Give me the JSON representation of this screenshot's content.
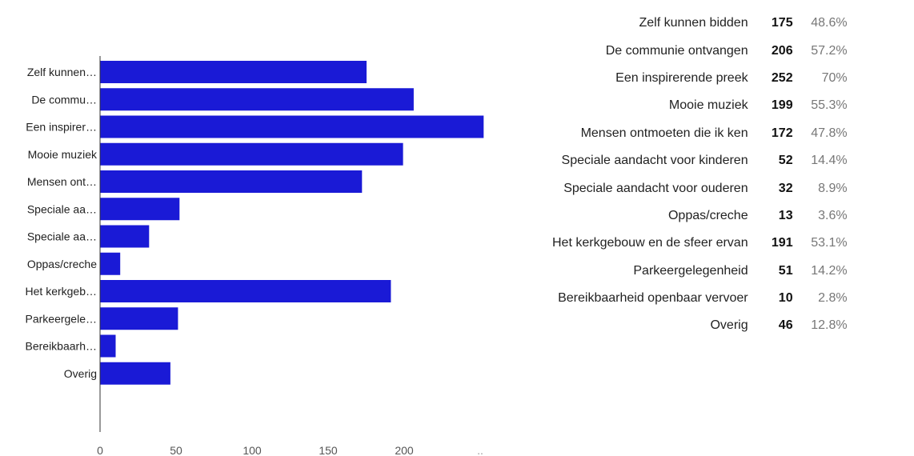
{
  "chart_data": {
    "type": "bar",
    "orientation": "horizontal",
    "categories": [
      "Zelf kunnen…",
      "De commu…",
      "Een inspirer…",
      "Mooie muziek",
      "Mensen ont…",
      "Speciale aa…",
      "Speciale aa…",
      "Oppas/creche",
      "Het kerkgeb…",
      "Parkeergele…",
      "Bereikbaarh…",
      "Overig"
    ],
    "values": [
      175,
      206,
      252,
      199,
      172,
      52,
      32,
      13,
      191,
      51,
      10,
      46
    ],
    "bar_color": "#1a1ad6",
    "xlim": [
      0,
      250
    ],
    "xticks": [
      "0",
      "50",
      "100",
      "150",
      "200",
      ".."
    ],
    "grid": false,
    "legend": "none"
  },
  "summary": {
    "rows": [
      {
        "label": "Zelf kunnen bidden",
        "count": "175",
        "percent": "48.6%"
      },
      {
        "label": "De communie ontvangen",
        "count": "206",
        "percent": "57.2%"
      },
      {
        "label": "Een inspirerende preek",
        "count": "252",
        "percent": "70%"
      },
      {
        "label": "Mooie muziek",
        "count": "199",
        "percent": "55.3%"
      },
      {
        "label": "Mensen ontmoeten die ik ken",
        "count": "172",
        "percent": "47.8%"
      },
      {
        "label": "Speciale aandacht voor kinderen",
        "count": "52",
        "percent": "14.4%"
      },
      {
        "label": "Speciale aandacht voor ouderen",
        "count": "32",
        "percent": "8.9%"
      },
      {
        "label": "Oppas/creche",
        "count": "13",
        "percent": "3.6%"
      },
      {
        "label": "Het kerkgebouw en de sfeer ervan",
        "count": "191",
        "percent": "53.1%"
      },
      {
        "label": "Parkeergelegenheid",
        "count": "51",
        "percent": "14.2%"
      },
      {
        "label": "Bereikbaarheid openbaar vervoer",
        "count": "10",
        "percent": "2.8%"
      },
      {
        "label": "Overig",
        "count": "46",
        "percent": "12.8%"
      }
    ]
  }
}
